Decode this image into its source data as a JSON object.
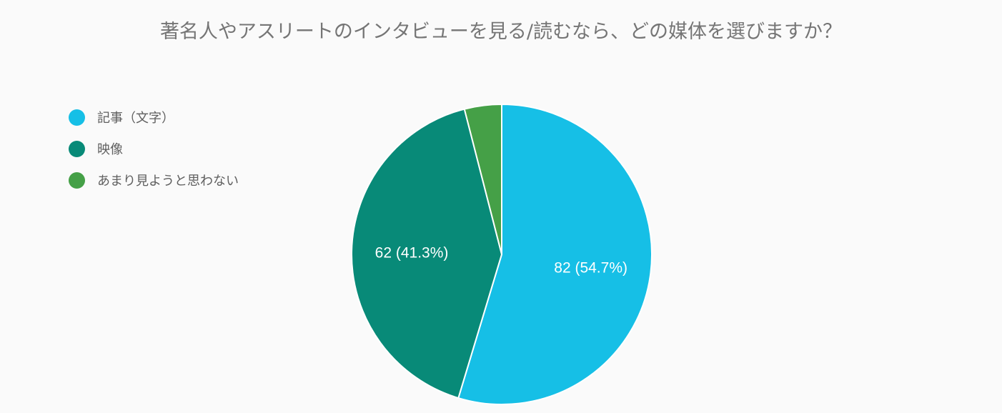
{
  "chart_data": {
    "type": "pie",
    "title": "著名人やアスリートのインタビューを見る/読むなら、どの媒体を選びますか？",
    "legend_position": "top-left",
    "slices": [
      {
        "label": "記事（文字）",
        "value": 82,
        "percent": 54.7,
        "data_label": "82 (54.7%)",
        "color": "#16bfe6"
      },
      {
        "label": "映像",
        "value": 62,
        "percent": 41.3,
        "data_label": "62 (41.3%)",
        "color": "#088a78"
      },
      {
        "label": "あまり見ようと思わない",
        "value": 6,
        "percent": 4.0,
        "data_label": "",
        "color": "#45a047"
      }
    ]
  }
}
